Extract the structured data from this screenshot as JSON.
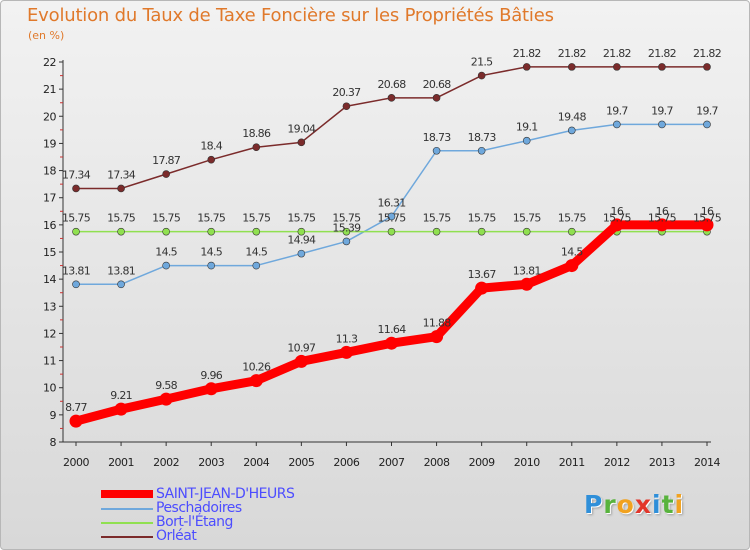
{
  "header": {
    "title": "Evolution du Taux de Taxe Foncière sur les Propriétés Bâties",
    "subtitle": "(en %)"
  },
  "logo": {
    "letters": [
      "P",
      "r",
      "o",
      "x",
      "i",
      "t",
      "i"
    ],
    "colors": [
      "#2f8fd9",
      "#58b33d",
      "#f1a21f",
      "#e2362a",
      "#2f8fd9",
      "#58b33d",
      "#f1a21f"
    ]
  },
  "chart_data": {
    "type": "line",
    "title": "Evolution du Taux de Taxe Foncière sur les Propriétés Bâties",
    "ylabel": "(en %)",
    "xlabel": "",
    "ylim": [
      8,
      22
    ],
    "yticks": [
      8,
      9,
      10,
      11,
      12,
      13,
      14,
      15,
      16,
      17,
      18,
      19,
      20,
      21,
      22
    ],
    "x": [
      "2000",
      "2001",
      "2002",
      "2003",
      "2004",
      "2005",
      "2006",
      "2007",
      "2008",
      "2009",
      "2010",
      "2011",
      "2012",
      "2013",
      "2014"
    ],
    "grid": false,
    "legend": "bottom-left",
    "series": [
      {
        "name": "Orléat",
        "color": "#7b2b2b",
        "values": [
          17.34,
          17.34,
          17.87,
          18.4,
          18.86,
          19.04,
          20.37,
          20.68,
          20.68,
          21.5,
          21.82,
          21.82,
          21.82,
          21.82,
          21.82
        ],
        "labels": [
          "17.34",
          "17.34",
          "17.87",
          "18.4",
          "18.86",
          "19.04",
          "20.37",
          "20.68",
          "20.68",
          "21.5",
          "21.82",
          "21.82",
          "21.82",
          "21.82",
          "21.82"
        ]
      },
      {
        "name": "Peschadoires",
        "color": "#6fa8dc",
        "values": [
          13.81,
          13.81,
          14.5,
          14.5,
          14.5,
          14.94,
          15.39,
          16.31,
          18.73,
          18.73,
          19.1,
          19.48,
          19.7,
          19.7,
          19.7
        ],
        "labels": [
          "13.81",
          "13.81",
          "14.5",
          "14.5",
          "14.5",
          "14.94",
          "15.39",
          "16.31",
          "18.73",
          "18.73",
          "19.1",
          "19.48",
          "19.7",
          "19.7",
          "19.7"
        ]
      },
      {
        "name": "Bort-l'Étang",
        "color": "#90e050",
        "values": [
          15.75,
          15.75,
          15.75,
          15.75,
          15.75,
          15.75,
          15.75,
          15.75,
          15.75,
          15.75,
          15.75,
          15.75,
          15.75,
          15.75,
          15.75
        ],
        "labels": [
          "15.75",
          "15.75",
          "15.75",
          "15.75",
          "15.75",
          "15.75",
          "15.75",
          "15.75",
          "15.75",
          "15.75",
          "15.75",
          "15.75",
          "15.75",
          "15.75",
          "15.75"
        ]
      },
      {
        "name": "SAINT-JEAN-D'HEURS",
        "color": "#ff0000",
        "values": [
          8.77,
          9.21,
          9.58,
          9.96,
          10.26,
          10.97,
          11.3,
          11.64,
          11.88,
          13.67,
          13.81,
          14.5,
          16,
          16,
          16
        ],
        "labels": [
          "8.77",
          "9.21",
          "9.58",
          "9.96",
          "10.26",
          "10.97",
          "11.3",
          "11.64",
          "11.88",
          "13.67",
          "13.81",
          "14.5",
          "16",
          "16",
          "16"
        ]
      }
    ],
    "legend_order": [
      "SAINT-JEAN-D'HEURS",
      "Peschadoires",
      "Bort-l'Étang",
      "Orléat"
    ]
  }
}
